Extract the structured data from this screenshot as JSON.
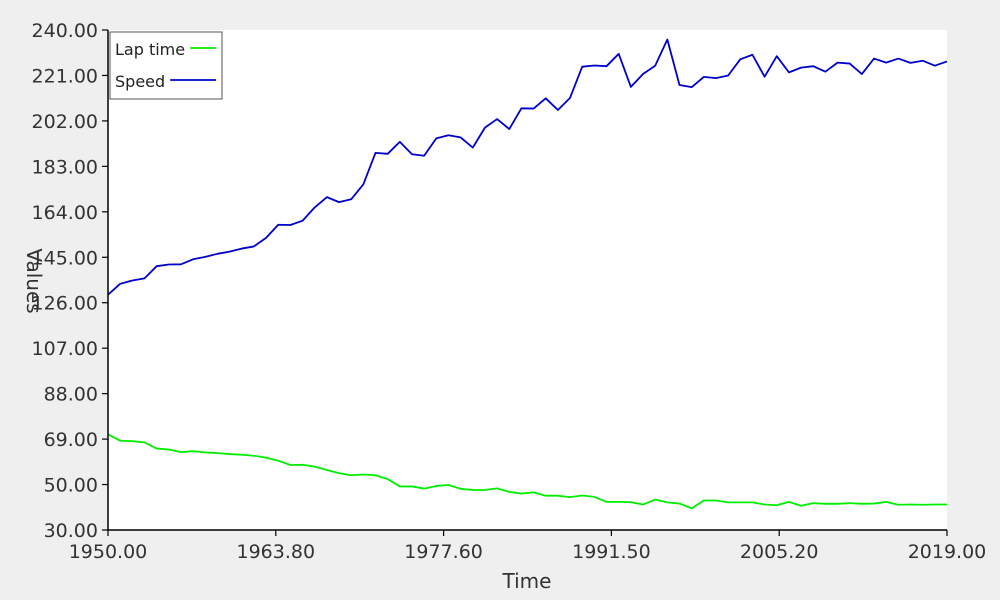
{
  "chart_data": {
    "type": "line",
    "title": "",
    "xlabel": "Time",
    "ylabel": "Values",
    "xlim": [
      1950,
      2019
    ],
    "ylim": [
      30,
      240
    ],
    "xticks": [
      "1950.00",
      "1963.80",
      "1977.60",
      "1991.50",
      "2005.20",
      "2019.00"
    ],
    "yticks": [
      "30.00",
      "50.00",
      "69.00",
      "88.00",
      "107.00",
      "126.00",
      "145.00",
      "164.00",
      "183.00",
      "202.00",
      "221.00",
      "240.00"
    ],
    "grid": false,
    "legend_position": "top-left",
    "x": [
      1950,
      1951,
      1952,
      1953,
      1954,
      1955,
      1956,
      1957,
      1958,
      1959,
      1960,
      1961,
      1962,
      1963,
      1964,
      1965,
      1966,
      1967,
      1968,
      1969,
      1970,
      1971,
      1972,
      1973,
      1974,
      1975,
      1976,
      1977,
      1978,
      1979,
      1980,
      1981,
      1982,
      1983,
      1984,
      1985,
      1986,
      1987,
      1988,
      1989,
      1990,
      1991,
      1992,
      1993,
      1994,
      1995,
      1996,
      1997,
      1998,
      1999,
      2000,
      2001,
      2002,
      2003,
      2004,
      2005,
      2006,
      2007,
      2008,
      2009,
      2010,
      2011,
      2012,
      2013,
      2014,
      2015,
      2016,
      2017,
      2018,
      2019
    ],
    "series": [
      {
        "name": "Lap time",
        "color": "#00ee00",
        "values": [
          70.2,
          67.5,
          67.3,
          66.8,
          64.2,
          63.8,
          62.7,
          63.1,
          62.6,
          62.3,
          61.9,
          61.6,
          61.2,
          60.4,
          59.1,
          57.3,
          57.4,
          56.6,
          55.2,
          53.9,
          53.0,
          53.3,
          53.0,
          51.4,
          48.3,
          48.3,
          47.4,
          48.5,
          48.9,
          47.3,
          46.8,
          46.8,
          47.5,
          46.0,
          45.3,
          45.8,
          44.4,
          44.4,
          43.8,
          44.5,
          43.9,
          41.8,
          41.8,
          41.7,
          40.7,
          42.8,
          41.6,
          41.1,
          39.1,
          42.4,
          42.4,
          41.6,
          41.6,
          41.6,
          40.7,
          40.4,
          41.8,
          40.2,
          41.3,
          41.0,
          41.0,
          41.3,
          41.0,
          41.1,
          41.8,
          40.6,
          40.7,
          40.6,
          40.7,
          40.7
        ]
      },
      {
        "name": "Speed",
        "color": "#0000cc",
        "values": [
          128.8,
          133.4,
          134.8,
          135.7,
          140.8,
          141.5,
          141.6,
          143.7,
          144.7,
          146.0,
          146.9,
          148.2,
          149.1,
          152.7,
          158.2,
          158.1,
          159.9,
          165.5,
          169.8,
          167.7,
          168.9,
          175.2,
          188.4,
          188.0,
          193.0,
          187.8,
          187.2,
          194.5,
          195.8,
          194.9,
          190.6,
          199.0,
          202.6,
          198.4,
          207.1,
          207.0,
          211.3,
          206.4,
          211.5,
          224.6,
          225.1,
          224.8,
          230.0,
          216.1,
          221.5,
          225.0,
          236.0,
          216.9,
          216.0,
          220.3,
          219.8,
          220.9,
          227.7,
          229.6,
          220.4,
          229.0,
          222.2,
          224.2,
          224.8,
          222.5,
          226.3,
          225.9,
          221.5,
          228.0,
          226.3,
          228.0,
          226.2,
          227.1,
          225.0,
          226.8
        ]
      }
    ]
  }
}
